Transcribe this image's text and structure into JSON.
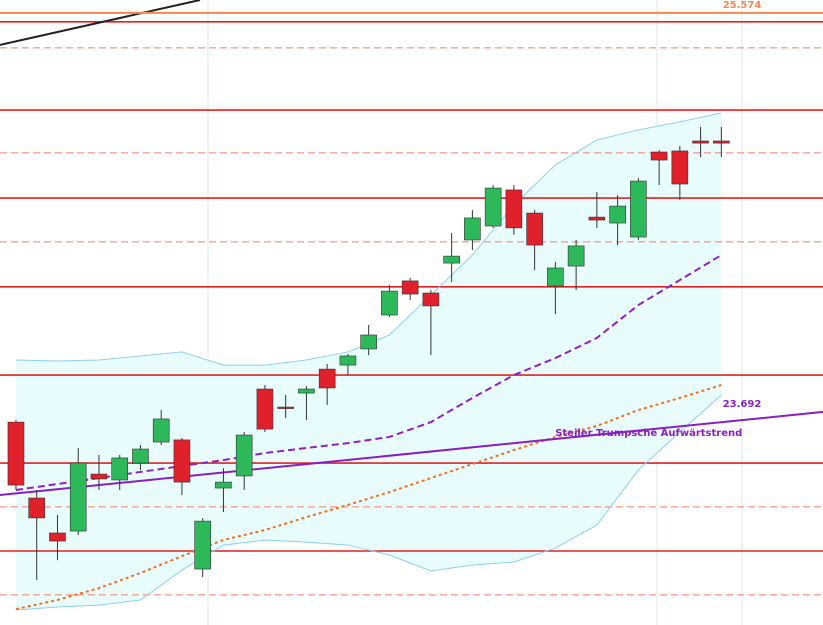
{
  "chart_data": {
    "type": "candlestick",
    "up_color": "#2db85a",
    "down_color": "#e0202a",
    "x": [
      0,
      1,
      2,
      3,
      4,
      5,
      6,
      7,
      8,
      9,
      10,
      11,
      12,
      13,
      14,
      15,
      16,
      17,
      18,
      19,
      20,
      21,
      22,
      23,
      24,
      25,
      26,
      27,
      28,
      29,
      30,
      31,
      32,
      33,
      34
    ],
    "open": [
      23644,
      23286,
      23121,
      23130,
      23399,
      23371,
      23451,
      23550,
      23560,
      22951,
      23333,
      23390,
      23800,
      23715,
      23781,
      23894,
      23913,
      23989,
      24149,
      24310,
      24253,
      24394,
      24503,
      24569,
      24739,
      24630,
      24286,
      24380,
      24611,
      24583,
      24517,
      24918,
      24923,
      24970,
      24970
    ],
    "high": [
      23654,
      23324,
      23206,
      23522,
      23489,
      23489,
      23536,
      23701,
      23569,
      23192,
      23427,
      23597,
      23819,
      23772,
      23814,
      23918,
      23965,
      24102,
      24291,
      24324,
      24267,
      24536,
      24644,
      24762,
      24762,
      24644,
      24399,
      24503,
      24729,
      24715,
      24795,
      24927,
      24946,
      25036,
      25036
    ],
    "low": [
      23324,
      22899,
      22993,
      23111,
      23324,
      23324,
      23418,
      23536,
      23300,
      22913,
      23220,
      23324,
      23597,
      23663,
      23654,
      23725,
      23866,
      23960,
      24140,
      24220,
      23960,
      24305,
      24456,
      24560,
      24527,
      24361,
      24154,
      24267,
      24560,
      24479,
      24503,
      24762,
      24692,
      24894,
      24894
    ],
    "close": [
      23347,
      23192,
      23083,
      23451,
      23376,
      23475,
      23517,
      23659,
      23361,
      23177,
      23361,
      23583,
      23611,
      23710,
      23800,
      23805,
      23956,
      24055,
      24262,
      24248,
      24192,
      24427,
      24607,
      24748,
      24560,
      24479,
      24371,
      24475,
      24597,
      24663,
      24781,
      24880,
      24767,
      24960,
      24960
    ],
    "xlim": [
      -0.77,
      38.9
    ],
    "ylim": [
      22687,
      25635
    ],
    "band_fill": "#e9fcfd",
    "indicators": [
      {
        "color": "#8fd0ee",
        "style": "solid",
        "x": [
          0,
          2,
          4,
          6,
          8,
          10,
          12,
          14,
          16,
          18,
          20,
          22,
          24,
          26,
          28,
          30,
          32,
          34
        ],
        "values": [
          23937,
          23932,
          23937,
          23956,
          23975,
          23913,
          23913,
          23937,
          23975,
          24055,
          24243,
          24432,
          24668,
          24857,
          24975,
          25022,
          25060,
          25102
        ]
      },
      {
        "color": "#8fd0ee",
        "style": "solid",
        "x": [
          0,
          2,
          4,
          6,
          8,
          10,
          12,
          14,
          16,
          18,
          20,
          22,
          24,
          26,
          28,
          30,
          32,
          34
        ],
        "values": [
          22758,
          22772,
          22781,
          22805,
          22946,
          23064,
          23088,
          23078,
          23064,
          23017,
          22942,
          22970,
          22984,
          23050,
          23159,
          23418,
          23597,
          23772
        ]
      },
      {
        "color": "#9020c8",
        "style": "dashed",
        "x": [
          0,
          2,
          4,
          6,
          8,
          10,
          12,
          14,
          16,
          18,
          20,
          22,
          24,
          26,
          28,
          30,
          32,
          34
        ],
        "values": [
          23324,
          23352,
          23380,
          23409,
          23437,
          23465,
          23498,
          23522,
          23545,
          23574,
          23644,
          23758,
          23866,
          23946,
          24041,
          24196,
          24314,
          24432
        ]
      },
      {
        "color": "#f07020",
        "style": "dotted",
        "x": [
          0,
          2,
          4,
          6,
          8,
          10,
          12,
          14,
          16,
          18,
          20,
          22,
          24,
          26,
          28,
          30,
          32,
          34
        ],
        "values": [
          22762,
          22805,
          22861,
          22932,
          23012,
          23088,
          23135,
          23196,
          23253,
          23314,
          23380,
          23446,
          23512,
          23574,
          23626,
          23701,
          23758,
          23819
        ]
      },
      {
        "color": "#8a1fc0",
        "style": "solid",
        "x": [
          -0.77,
          38.9
        ],
        "values": [
          23300,
          23692
        ]
      },
      {
        "color": "#222222",
        "style": "solid",
        "x": [
          -0.77,
          8.87
        ],
        "values": [
          25423,
          25635
        ]
      },
      {
        "color": "#f08a50",
        "style": "solid",
        "x": [
          -0.77,
          38.9
        ],
        "values": [
          25574,
          25574
        ]
      }
    ],
    "levels": [
      {
        "value": 25532,
        "color": "#e02020",
        "style": "solid"
      },
      {
        "value": 25409,
        "color": "#f08060",
        "style": "dashed"
      },
      {
        "value": 25116,
        "color": "#e02020",
        "style": "solid"
      },
      {
        "value": 24914,
        "color": "#f08060",
        "style": "dashed"
      },
      {
        "value": 24701,
        "color": "#e02020",
        "style": "solid"
      },
      {
        "value": 24494,
        "color": "#f08060",
        "style": "dashed"
      },
      {
        "value": 24282,
        "color": "#e02020",
        "style": "solid"
      },
      {
        "value": 23866,
        "color": "#e02020",
        "style": "solid"
      },
      {
        "value": 23451,
        "color": "#e02020",
        "style": "solid"
      },
      {
        "value": 23244,
        "color": "#f08060",
        "style": "dashed"
      },
      {
        "value": 23036,
        "color": "#e02020",
        "style": "solid"
      },
      {
        "value": 22829,
        "color": "#f08060",
        "style": "dashed"
      }
    ],
    "price_labels": [
      {
        "value": 25574,
        "label": "25.574",
        "color": "#f08a50"
      },
      {
        "value": 23692,
        "label": "23.692",
        "color": "#8a1fc0"
      }
    ],
    "annotation": {
      "text": "Steiler Trumpsche Aufwärtstrend",
      "color": "#8a1fc0",
      "x": 30.5,
      "y": 23592
    }
  }
}
